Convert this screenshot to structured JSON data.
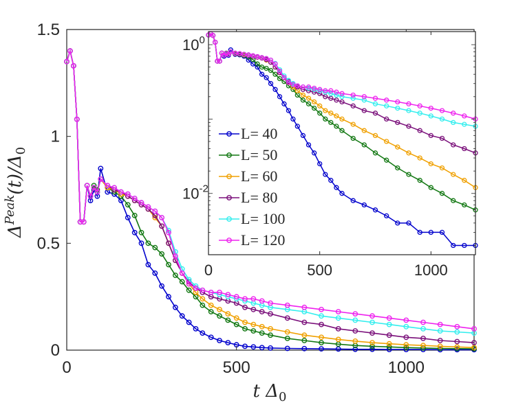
{
  "chart_data": [
    {
      "type": "line",
      "name": "main",
      "xlabel": "t Δ0",
      "ylabel": "Δ^Peak(t)/Δ0",
      "xlim": [
        0,
        1200
      ],
      "ylim": [
        0,
        1.5
      ],
      "xticks": [
        0,
        500,
        1000
      ],
      "xtick_labels": [
        "0",
        "500",
        "1000"
      ],
      "yticks": [
        0,
        0.5,
        1,
        1.5
      ],
      "ytick_labels": [
        "0",
        "0.5",
        "1",
        "1.5"
      ],
      "x": [
        0,
        10,
        20,
        30,
        40,
        50,
        60,
        70,
        80,
        90,
        100,
        120,
        140,
        160,
        180,
        200,
        220,
        240,
        260,
        280,
        300,
        320,
        340,
        360,
        380,
        400,
        425,
        450,
        475,
        500,
        525,
        550,
        575,
        600,
        650,
        700,
        750,
        800,
        850,
        900,
        950,
        1000,
        1050,
        1100,
        1150,
        1200
      ],
      "series": [
        {
          "name": "L= 40",
          "color": "#0000cc",
          "values": [
            1.35,
            1.4,
            1.33,
            1.08,
            0.6,
            0.6,
            0.77,
            0.7,
            0.75,
            0.72,
            0.85,
            0.74,
            0.73,
            0.7,
            0.62,
            0.55,
            0.5,
            0.4,
            0.36,
            0.3,
            0.25,
            0.2,
            0.16,
            0.13,
            0.1,
            0.08,
            0.06,
            0.045,
            0.035,
            0.025,
            0.018,
            0.015,
            0.012,
            0.01,
            0.008,
            0.007,
            0.006,
            0.005,
            0.004,
            0.004,
            0.003,
            0.003,
            0.003,
            0.002,
            0.002,
            0.002
          ]
        },
        {
          "name": "L= 50",
          "color": "#117711",
          "values": [
            1.35,
            1.4,
            1.33,
            1.08,
            0.6,
            0.6,
            0.77,
            0.72,
            0.77,
            0.75,
            0.8,
            0.76,
            0.74,
            0.72,
            0.68,
            0.63,
            0.55,
            0.5,
            0.48,
            0.45,
            0.4,
            0.35,
            0.32,
            0.28,
            0.25,
            0.21,
            0.18,
            0.16,
            0.14,
            0.12,
            0.1,
            0.09,
            0.08,
            0.07,
            0.055,
            0.045,
            0.035,
            0.028,
            0.022,
            0.018,
            0.015,
            0.012,
            0.01,
            0.008,
            0.007,
            0.006
          ]
        },
        {
          "name": "L= 60",
          "color": "#f0a000",
          "values": [
            1.35,
            1.4,
            1.33,
            1.08,
            0.6,
            0.6,
            0.77,
            0.72,
            0.76,
            0.74,
            0.8,
            0.76,
            0.75,
            0.73,
            0.72,
            0.7,
            0.68,
            0.66,
            0.62,
            0.58,
            0.5,
            0.42,
            0.36,
            0.31,
            0.27,
            0.24,
            0.21,
            0.19,
            0.17,
            0.15,
            0.13,
            0.12,
            0.11,
            0.1,
            0.085,
            0.07,
            0.06,
            0.05,
            0.042,
            0.035,
            0.03,
            0.025,
            0.022,
            0.018,
            0.015,
            0.012
          ]
        },
        {
          "name": "L= 80",
          "color": "#7a0f7a",
          "values": [
            1.35,
            1.4,
            1.33,
            1.08,
            0.6,
            0.6,
            0.77,
            0.72,
            0.76,
            0.74,
            0.8,
            0.77,
            0.75,
            0.74,
            0.72,
            0.7,
            0.68,
            0.66,
            0.63,
            0.58,
            0.5,
            0.42,
            0.36,
            0.32,
            0.29,
            0.27,
            0.25,
            0.24,
            0.23,
            0.22,
            0.2,
            0.19,
            0.18,
            0.17,
            0.15,
            0.13,
            0.12,
            0.1,
            0.09,
            0.08,
            0.07,
            0.06,
            0.055,
            0.045,
            0.04,
            0.035
          ]
        },
        {
          "name": "L= 100",
          "color": "#33eeee",
          "values": [
            1.35,
            1.4,
            1.33,
            1.08,
            0.6,
            0.6,
            0.77,
            0.72,
            0.76,
            0.74,
            0.8,
            0.77,
            0.76,
            0.74,
            0.73,
            0.71,
            0.69,
            0.67,
            0.65,
            0.62,
            0.56,
            0.46,
            0.38,
            0.33,
            0.3,
            0.28,
            0.27,
            0.26,
            0.25,
            0.24,
            0.23,
            0.22,
            0.21,
            0.2,
            0.19,
            0.18,
            0.16,
            0.15,
            0.14,
            0.13,
            0.12,
            0.11,
            0.1,
            0.09,
            0.085,
            0.08
          ]
        },
        {
          "name": "L= 120",
          "color": "#ee22ee",
          "values": [
            1.35,
            1.4,
            1.33,
            1.08,
            0.6,
            0.6,
            0.77,
            0.72,
            0.76,
            0.74,
            0.8,
            0.77,
            0.76,
            0.74,
            0.73,
            0.71,
            0.69,
            0.67,
            0.65,
            0.62,
            0.55,
            0.44,
            0.36,
            0.31,
            0.29,
            0.28,
            0.27,
            0.27,
            0.26,
            0.25,
            0.24,
            0.24,
            0.23,
            0.22,
            0.21,
            0.2,
            0.19,
            0.18,
            0.17,
            0.16,
            0.15,
            0.14,
            0.13,
            0.12,
            0.11,
            0.1
          ]
        }
      ]
    },
    {
      "type": "line",
      "name": "inset",
      "yscale": "log",
      "xlim": [
        0,
        1200
      ],
      "ylim": [
        0.0015,
        1.5
      ],
      "xticks": [
        0,
        500,
        1000
      ],
      "xtick_labels": [
        "0",
        "500",
        "1000"
      ],
      "ytick_labels": [
        {
          "base": "10",
          "exp": "0",
          "value": 1
        },
        {
          "base": "10",
          "exp": "-2",
          "value": 0.01
        }
      ],
      "legend": {
        "position": "left-middle",
        "entries": [
          "L= 40",
          "L= 50",
          "L= 60",
          "L= 80",
          "L= 100",
          "L= 120"
        ]
      },
      "note": "inset uses the same series data as main plot on a logarithmic y-axis"
    }
  ]
}
